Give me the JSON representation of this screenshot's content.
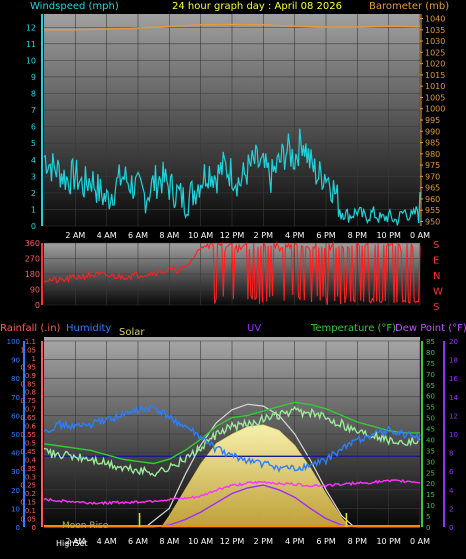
{
  "header": {
    "wind_label": "Windspeed (mph)",
    "title": "24 hour graph day : April 08 2026",
    "baro_label": "Barometer (mb)"
  },
  "bottom_header": {
    "rain_label": "Rainfall (.in)",
    "humidity_label": "Humidity",
    "solar_label": "Solar",
    "uv_label": "UV",
    "temp_label": "Temperature (°F)",
    "dew_label": "Dew Point (°F)"
  },
  "bottom_annotations": {
    "moon_rise": "Moon Rise",
    "high_set": "HighSet"
  },
  "compass": [
    "S",
    "E",
    "N",
    "W",
    "S"
  ],
  "colors": {
    "wind": "#1fd3dd",
    "barometer": "#e39a3a",
    "direction": "#ff2020",
    "rainfall": "#ff5a5a",
    "humidity": "#2a7fff",
    "solar_fill": "#f5e07a",
    "solar_curve": "#d8d8d8",
    "uv": "#9a2cff",
    "temperature": "#33cc33",
    "dew_point": "#c050ff",
    "title": "#ffff33"
  },
  "chart_data": [
    {
      "type": "line",
      "x_tick_labels": [
        "2 AM",
        "4 AM",
        "6 AM",
        "8 AM",
        "10 AM",
        "12 PM",
        "2 PM",
        "4 PM",
        "6 PM",
        "8 PM",
        "10 PM",
        "0 AM"
      ],
      "xlim": [
        0,
        24
      ],
      "y_left_ticks": [
        0,
        1,
        2,
        3,
        4,
        5,
        6,
        7,
        8,
        9,
        10,
        11,
        12
      ],
      "ylim_left": [
        0,
        12.8
      ],
      "y_right_ticks": [
        950,
        955,
        960,
        965,
        970,
        975,
        980,
        985,
        990,
        995,
        1000,
        1005,
        1010,
        1015,
        1020,
        1025,
        1030,
        1035,
        1040
      ],
      "ylim_right": [
        948,
        1042
      ],
      "series": [
        {
          "name": "Windspeed (mph)",
          "x": [
            0,
            0.5,
            1,
            1.5,
            2,
            2.5,
            3,
            3.5,
            4,
            4.5,
            5,
            5.5,
            6,
            6.5,
            7,
            7.5,
            8,
            8.5,
            9,
            9.5,
            10,
            10.5,
            11,
            11.5,
            12,
            12.5,
            13,
            13.5,
            14,
            14.5,
            15,
            15.5,
            16,
            16.5,
            17,
            17.5,
            18,
            18.5,
            19,
            19.5,
            20,
            20.5,
            21,
            21.5,
            22,
            22.5,
            23,
            23.5,
            24
          ],
          "y": [
            4.2,
            3.6,
            3.3,
            2.8,
            3.1,
            2.4,
            2.9,
            2.1,
            1.6,
            2.3,
            3.0,
            2.6,
            2.2,
            1.8,
            2.6,
            2.9,
            2.4,
            2.0,
            1.5,
            2.0,
            2.8,
            3.4,
            3.0,
            3.6,
            3.2,
            2.6,
            3.4,
            3.9,
            3.5,
            2.9,
            3.8,
            4.6,
            4.1,
            5.3,
            3.8,
            3.0,
            3.2,
            2.2,
            0.9,
            0.6,
            0.9,
            0.5,
            0.8,
            0.4,
            0.6,
            0.3,
            0.9,
            0.5,
            1.2
          ]
        },
        {
          "name": "Barometer (mb)",
          "x": [
            0,
            2,
            4,
            6,
            8,
            10,
            12,
            14,
            16,
            18,
            20,
            22,
            24
          ],
          "y": [
            1035.0,
            1035.0,
            1035.3,
            1035.8,
            1036.5,
            1037.2,
            1037.4,
            1037.2,
            1036.6,
            1036.2,
            1036.3,
            1036.6,
            1036.4
          ]
        }
      ]
    },
    {
      "type": "scatter",
      "x_tick_labels": [],
      "y_ticks": [
        0,
        90,
        180,
        270,
        360
      ],
      "ylim": [
        0,
        360
      ],
      "series": [
        {
          "name": "Wind direction",
          "x": [
            0,
            1,
            2,
            3,
            4,
            5,
            6,
            7,
            8,
            9,
            10,
            10.5,
            11,
            12,
            13,
            14,
            15,
            16,
            17,
            18,
            19,
            20,
            21,
            22,
            23,
            24
          ],
          "y": [
            150,
            140,
            160,
            175,
            170,
            165,
            175,
            190,
            200,
            210,
            330,
            40,
            340,
            350,
            20,
            345,
            10,
            330,
            350,
            340,
            45,
            15,
            350,
            10,
            340,
            355
          ]
        }
      ]
    },
    {
      "type": "line",
      "x_tick_labels": [
        "2 AM",
        "4 AM",
        "6 AM",
        "8 AM",
        "10 AM",
        "12 PM",
        "2 PM",
        "4 PM",
        "6 PM",
        "8 PM",
        "10 PM",
        "0 AM"
      ],
      "y_left_humidity_ticks": [
        0,
        10,
        20,
        30,
        40,
        50,
        60,
        70,
        80,
        90,
        100
      ],
      "y_left_rain_ticks": [
        0,
        0.05,
        0.1,
        0.15,
        0.2,
        0.25,
        0.3,
        0.35,
        0.4,
        0.45,
        0.5,
        0.55,
        0.6,
        0.65,
        0.7,
        0.75,
        0.8,
        0.85,
        0.9,
        0.95,
        1.0,
        1.05,
        1.1
      ],
      "y_right_temp_ticks": [
        0,
        5,
        10,
        15,
        20,
        25,
        30,
        35,
        40,
        45,
        50,
        55,
        60,
        65,
        70,
        75,
        80,
        85
      ],
      "y_right_uv_ticks": [
        0,
        2,
        4,
        6,
        8,
        10,
        12,
        14,
        16,
        18,
        20
      ],
      "ylim_humidity": [
        0,
        100
      ],
      "ylim_temp": [
        0,
        85
      ],
      "ylim_uv": [
        0,
        20
      ],
      "series": [
        {
          "name": "Humidity",
          "x": [
            0,
            1,
            2,
            3,
            4,
            5,
            6,
            7,
            8,
            9,
            10,
            11,
            12,
            13,
            14,
            15,
            16,
            17,
            18,
            19,
            20,
            21,
            22,
            23,
            24
          ],
          "y": [
            52,
            55,
            54,
            55,
            58,
            60,
            63,
            64,
            59,
            54,
            48,
            42,
            38,
            36,
            34,
            32,
            31,
            33,
            36,
            42,
            47,
            50,
            52,
            50,
            48
          ]
        },
        {
          "name": "Temperature (°F)",
          "x": [
            0,
            1,
            2,
            3,
            4,
            5,
            6,
            7,
            8,
            9,
            10,
            11,
            12,
            13,
            14,
            15,
            16,
            17,
            18,
            19,
            20,
            21,
            22,
            23,
            24
          ],
          "y": [
            34,
            33,
            32,
            31,
            29,
            27,
            26,
            25,
            27,
            31,
            36,
            42,
            46,
            47,
            49,
            51,
            53,
            52,
            50,
            47,
            44,
            42,
            40,
            39,
            39
          ]
        },
        {
          "name": "Dew Point (°F)",
          "x": [
            0,
            1,
            2,
            3,
            4,
            5,
            6,
            7,
            8,
            9,
            10,
            11,
            12,
            13,
            14,
            15,
            16,
            17,
            18,
            19,
            20,
            21,
            22,
            23,
            24
          ],
          "y": [
            12.5,
            12.0,
            11.5,
            11.0,
            11.0,
            11.2,
            11.5,
            12.0,
            12.5,
            13.0,
            14.0,
            17.0,
            19.0,
            20.0,
            20.5,
            20.0,
            19.5,
            19.0,
            19.0,
            19.5,
            20.0,
            20.5,
            21.0,
            21.0,
            20.5
          ]
        },
        {
          "name": "UV",
          "x": [
            0,
            7,
            8,
            9,
            10,
            11,
            12,
            13,
            14,
            15,
            16,
            17,
            18,
            19,
            20,
            24
          ],
          "y": [
            0,
            0,
            0.2,
            0.8,
            1.6,
            2.6,
            3.6,
            4.2,
            4.5,
            4.0,
            3.2,
            2.0,
            0.9,
            0.2,
            0,
            0
          ]
        },
        {
          "name": "Solar",
          "x": [
            7.5,
            8,
            9,
            10,
            11,
            12,
            13,
            14,
            15,
            16,
            17,
            18,
            19,
            19.5
          ],
          "y": [
            0,
            6,
            20,
            34,
            45,
            50,
            54,
            55,
            52,
            44,
            32,
            18,
            5,
            0
          ]
        },
        {
          "name": "Solar max",
          "x": [
            6.5,
            8,
            9,
            10,
            11,
            12,
            13,
            14,
            15,
            16,
            17,
            18,
            19,
            19.8
          ],
          "y": [
            0,
            10,
            28,
            44,
            56,
            63,
            66,
            65,
            60,
            50,
            36,
            20,
            6,
            0
          ]
        },
        {
          "name": "Rainfall (.in)",
          "x": [
            0,
            24
          ],
          "y": [
            0,
            0
          ]
        }
      ]
    }
  ]
}
